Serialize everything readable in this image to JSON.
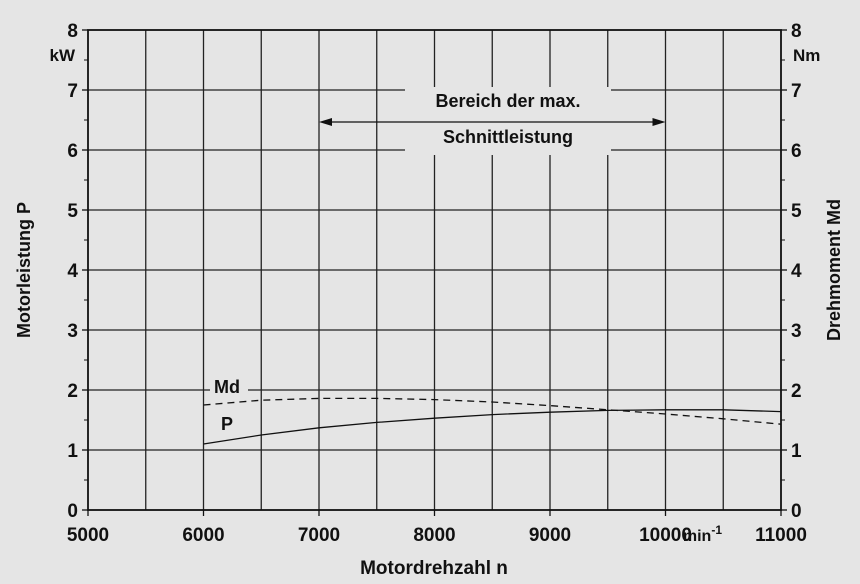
{
  "chart_data": {
    "type": "line",
    "title": "",
    "annotation": {
      "line1": "Bereich der max.",
      "line2": "Schnittleistung",
      "x_range": [
        7000,
        10000
      ]
    },
    "xlabel": "Motordrehzahl  n",
    "x_unit": "min",
    "x_unit_sup": "-1",
    "xlim": [
      5000,
      11000
    ],
    "x_ticks": [
      5000,
      6000,
      7000,
      8000,
      9000,
      10000,
      11000
    ],
    "x_tick_labels": [
      "5000",
      "6000",
      "7000",
      "8000",
      "9000",
      "10000",
      "11000"
    ],
    "x_grid_step": 500,
    "ylabel_left": "Motorleistung  P",
    "y_unit_left": "kW",
    "ylabel_right": "Drehmoment  Md",
    "y_unit_right": "Nm",
    "ylim": [
      0,
      8
    ],
    "y_ticks": [
      "0",
      "1",
      "2",
      "3",
      "4",
      "5",
      "6",
      "7",
      "8"
    ],
    "grid": true,
    "series": [
      {
        "name": "Md",
        "axis": "right",
        "style": "dashed",
        "x": [
          6000,
          6500,
          7000,
          7500,
          8000,
          8500,
          9000,
          9500,
          10000,
          10500,
          11000
        ],
        "y": [
          1.75,
          1.83,
          1.86,
          1.86,
          1.84,
          1.8,
          1.74,
          1.67,
          1.6,
          1.52,
          1.43
        ]
      },
      {
        "name": "P",
        "axis": "left",
        "style": "solid",
        "x": [
          6000,
          6500,
          7000,
          7500,
          8000,
          8500,
          9000,
          9500,
          10000,
          10500,
          11000
        ],
        "y": [
          1.1,
          1.25,
          1.37,
          1.46,
          1.53,
          1.59,
          1.63,
          1.66,
          1.67,
          1.67,
          1.64
        ]
      }
    ]
  }
}
